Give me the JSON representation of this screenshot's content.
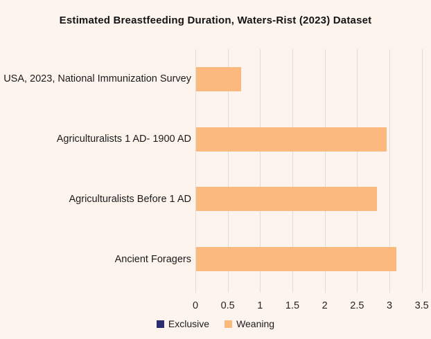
{
  "title": "Estimated Breastfeeding Duration, Waters-Rist (2023) Dataset",
  "legend": {
    "items": [
      {
        "label": "Exclusive",
        "color": "#2B2C71"
      },
      {
        "label": "Weaning",
        "color": "#FCB97D"
      }
    ]
  },
  "colors": {
    "background": "#FDF4EE",
    "gridline": "#DFDCD8",
    "text": "#1B1B1B",
    "exclusive": "#2B2C71",
    "weaning": "#FCB97D"
  },
  "chart_data": {
    "type": "bar",
    "orientation": "horizontal",
    "title": "Estimated Breastfeeding Duration, Waters-Rist (2023) Dataset",
    "categories": [
      "USA, 2023, National Immunization Survey",
      "Agriculturalists 1 AD- 1900 AD",
      "Agriculturalists Before 1 AD",
      "Ancient Foragers"
    ],
    "series": [
      {
        "name": "Exclusive",
        "color": "#2B2C71",
        "values": [
          0,
          0,
          0,
          0
        ]
      },
      {
        "name": "Weaning",
        "color": "#FCB97D",
        "values": [
          0.7,
          2.95,
          2.8,
          3.1
        ]
      }
    ],
    "xlabel": "",
    "ylabel": "",
    "xlim": [
      0,
      3.5
    ],
    "xticks": [
      0,
      0.5,
      1,
      1.5,
      2,
      2.5,
      3,
      3.5
    ],
    "x_tick_labels": [
      "0",
      "0.5",
      "1",
      "1.5",
      "2",
      "2.5",
      "3",
      "3.5"
    ],
    "grid": true,
    "legend_position": "bottom"
  }
}
